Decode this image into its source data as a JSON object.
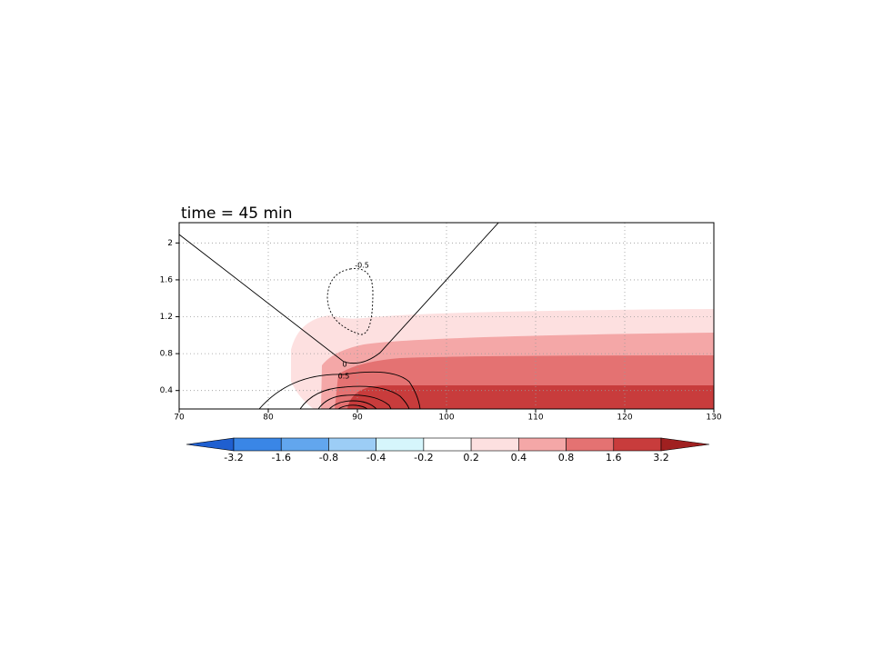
{
  "chart_data": {
    "type": "contour",
    "title": "time = 45 min",
    "xlim": [
      70,
      130
    ],
    "xticks": [
      70,
      80,
      90,
      100,
      110,
      120,
      130
    ],
    "ylim": [
      0.2,
      2.22
    ],
    "yticks": [
      0.4,
      0.8,
      1.2,
      1.6,
      2
    ],
    "grid": true,
    "contour_labels": [
      -0.5,
      0,
      0.5
    ],
    "levels": [
      -3.2,
      -1.6,
      -0.8,
      -0.4,
      -0.2,
      0.2,
      0.4,
      0.8,
      1.6,
      3.2
    ],
    "colors": [
      "#1f5fd0",
      "#3a86e6",
      "#62a6ee",
      "#9ccdf6",
      "#d6f6fc",
      "#ffffff",
      "#fde0e0",
      "#f4a7a7",
      "#e47272",
      "#c83c3c",
      "#a02020"
    ]
  }
}
